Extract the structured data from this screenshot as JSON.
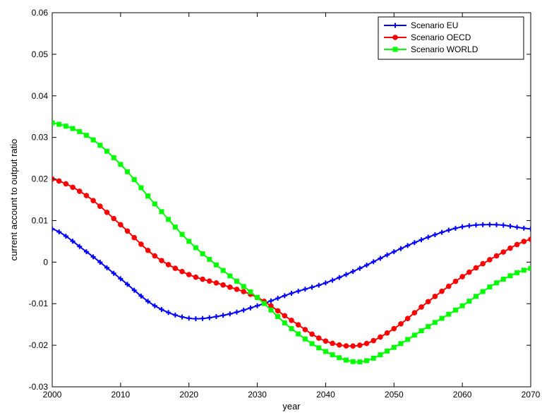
{
  "chart_data": {
    "type": "line",
    "xlabel": "year",
    "ylabel": "current account to output ratio",
    "xlim": [
      2000,
      2070
    ],
    "ylim": [
      -0.03,
      0.06
    ],
    "xticks": [
      2000,
      2010,
      2020,
      2030,
      2040,
      2050,
      2060,
      2070
    ],
    "yticks": [
      -0.03,
      -0.02,
      -0.01,
      0,
      0.01,
      0.02,
      0.03,
      0.04,
      0.05,
      0.06
    ],
    "ytick_labels": [
      "-0.03",
      "-0.02",
      "-0.01",
      "0",
      "0.01",
      "0.02",
      "0.03",
      "0.04",
      "0.05",
      "0.06"
    ],
    "grid": false,
    "legend_position": "top-right",
    "series": [
      {
        "name": "Scenario EU",
        "color": "#0000ff",
        "marker": "plus",
        "points": [
          [
            2000,
            0.008
          ],
          [
            2005,
            0.0025
          ],
          [
            2010,
            -0.004
          ],
          [
            2015,
            -0.0105
          ],
          [
            2020,
            -0.0135
          ],
          [
            2025,
            -0.0128
          ],
          [
            2030,
            -0.0105
          ],
          [
            2035,
            -0.0075
          ],
          [
            2040,
            -0.005
          ],
          [
            2045,
            -0.0015
          ],
          [
            2050,
            0.0025
          ],
          [
            2055,
            0.006
          ],
          [
            2060,
            0.0085
          ],
          [
            2065,
            0.009
          ],
          [
            2070,
            0.008
          ]
        ]
      },
      {
        "name": "Scenario OECD",
        "color": "#ff0000",
        "marker": "circle",
        "points": [
          [
            2000,
            0.02
          ],
          [
            2005,
            0.016
          ],
          [
            2010,
            0.009
          ],
          [
            2015,
            0.0015
          ],
          [
            2020,
            -0.003
          ],
          [
            2025,
            -0.0055
          ],
          [
            2030,
            -0.0085
          ],
          [
            2035,
            -0.014
          ],
          [
            2040,
            -0.019
          ],
          [
            2045,
            -0.02
          ],
          [
            2050,
            -0.016
          ],
          [
            2055,
            -0.0095
          ],
          [
            2060,
            -0.0035
          ],
          [
            2065,
            0.0015
          ],
          [
            2070,
            0.0055
          ]
        ]
      },
      {
        "name": "Scenario WORLD",
        "color": "#00ff00",
        "marker": "square",
        "points": [
          [
            2000,
            0.0335
          ],
          [
            2005,
            0.0305
          ],
          [
            2010,
            0.0235
          ],
          [
            2015,
            0.014
          ],
          [
            2020,
            0.005
          ],
          [
            2025,
            -0.002
          ],
          [
            2030,
            -0.0085
          ],
          [
            2035,
            -0.016
          ],
          [
            2040,
            -0.0215
          ],
          [
            2045,
            -0.024
          ],
          [
            2050,
            -0.0205
          ],
          [
            2055,
            -0.0155
          ],
          [
            2060,
            -0.0105
          ],
          [
            2065,
            -0.005
          ],
          [
            2070,
            -0.0015
          ]
        ]
      }
    ]
  }
}
